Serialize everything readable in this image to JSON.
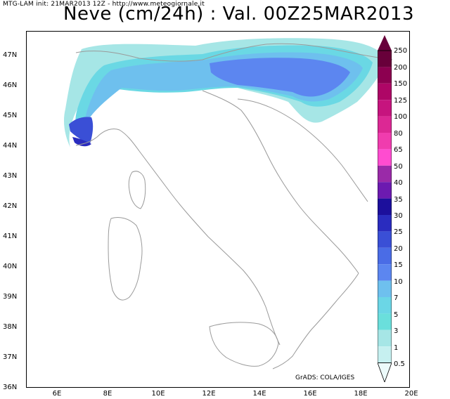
{
  "header": {
    "info_line": "MTG-LAM init: 21MAR2013 12Z - http://www.meteogiornale.it",
    "title": "Neve (cm/24h) : Val. 00Z25MAR2013"
  },
  "axes": {
    "latitude_labels": [
      "47N",
      "46N",
      "45N",
      "44N",
      "43N",
      "42N",
      "41N",
      "40N",
      "39N",
      "38N",
      "37N",
      "36N"
    ],
    "longitude_labels": [
      "6E",
      "8E",
      "10E",
      "12E",
      "14E",
      "16E",
      "18E",
      "20E"
    ]
  },
  "credit": "GrADS: COLA/IGES",
  "legend": {
    "labels": [
      "250",
      "200",
      "150",
      "125",
      "100",
      "80",
      "65",
      "50",
      "40",
      "35",
      "30",
      "25",
      "20",
      "15",
      "10",
      "7",
      "5",
      "3",
      "1",
      "0.5"
    ],
    "colors": [
      "#68003a",
      "#8c0050",
      "#ae0666",
      "#c6147e",
      "#dc2894",
      "#f03cae",
      "#ff4cd0",
      "#9a2aa8",
      "#6c1ab0",
      "#1c0f9c",
      "#2a2cbf",
      "#3a4fd6",
      "#4a6ce6",
      "#5c86f0",
      "#6ec0ee",
      "#6bd6e6",
      "#6adfdc",
      "#a6e6e6",
      "#c6f0f0",
      "#ecfafa"
    ]
  },
  "map_colors": {
    "land_border": "#9a9a9a",
    "snow_light": "#a6e6e6",
    "snow_cyan": "#6ad8e4",
    "snow_sky": "#6ec0ee",
    "snow_blue": "#5c86f0",
    "snow_deep": "#3a4fd6",
    "snow_max": "#2a2cbf"
  }
}
